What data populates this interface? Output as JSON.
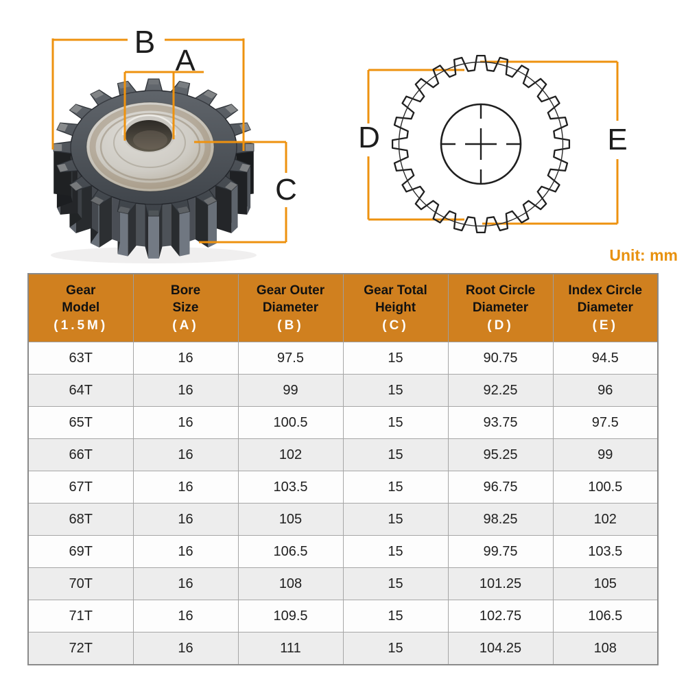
{
  "unit_label": "Unit: mm",
  "diagram_labels": {
    "bore": "A",
    "outer_diameter": "B",
    "total_height": "C",
    "root_circle": "D",
    "index_circle": "E"
  },
  "colors": {
    "dimension_line": "#ee920f",
    "header_background": "#d0801f",
    "unit_text": "#e8910e",
    "diagram_stroke": "#1f1f1f"
  },
  "table": {
    "columns": [
      {
        "lines": [
          "Gear",
          "Model"
        ],
        "letter": "(1.5M)"
      },
      {
        "lines": [
          "Bore",
          "Size"
        ],
        "letter": "(A)"
      },
      {
        "lines": [
          "Gear Outer",
          "Diameter"
        ],
        "letter": "(B)"
      },
      {
        "lines": [
          "Gear Total",
          "Height"
        ],
        "letter": "(C)"
      },
      {
        "lines": [
          "Root Circle",
          "Diameter"
        ],
        "letter": "(D)"
      },
      {
        "lines": [
          "Index Circle",
          "Diameter"
        ],
        "letter": "(E)"
      }
    ],
    "rows": [
      [
        "63T",
        "16",
        "97.5",
        "15",
        "90.75",
        "94.5"
      ],
      [
        "64T",
        "16",
        "99",
        "15",
        "92.25",
        "96"
      ],
      [
        "65T",
        "16",
        "100.5",
        "15",
        "93.75",
        "97.5"
      ],
      [
        "66T",
        "16",
        "102",
        "15",
        "95.25",
        "99"
      ],
      [
        "67T",
        "16",
        "103.5",
        "15",
        "96.75",
        "100.5"
      ],
      [
        "68T",
        "16",
        "105",
        "15",
        "98.25",
        "102"
      ],
      [
        "69T",
        "16",
        "106.5",
        "15",
        "99.75",
        "103.5"
      ],
      [
        "70T",
        "16",
        "108",
        "15",
        "101.25",
        "105"
      ],
      [
        "71T",
        "16",
        "109.5",
        "15",
        "102.75",
        "106.5"
      ],
      [
        "72T",
        "16",
        "111",
        "15",
        "104.25",
        "108"
      ]
    ]
  }
}
